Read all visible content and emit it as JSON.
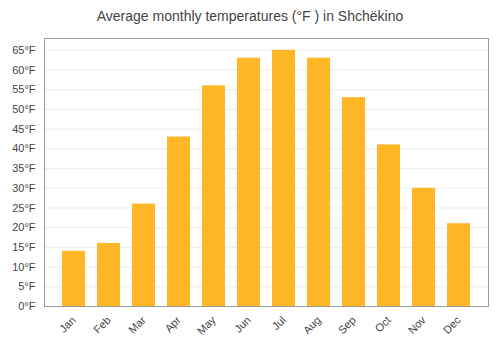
{
  "chart_data": {
    "type": "bar",
    "title": "Average monthly temperatures (°F ) in Shchёkino",
    "categories": [
      "Jan",
      "Feb",
      "Mar",
      "Apr",
      "May",
      "Jun",
      "Jul",
      "Aug",
      "Sep",
      "Oct",
      "Nov",
      "Dec"
    ],
    "values": [
      14,
      16,
      26,
      43,
      56,
      63,
      65,
      63,
      53,
      41,
      30,
      21
    ],
    "color": "#FFB726",
    "ylim": [
      0,
      68
    ],
    "yticks": [
      {
        "value": 0,
        "label": "0°F"
      },
      {
        "value": 5,
        "label": "5°F"
      },
      {
        "value": 10,
        "label": "10°F"
      },
      {
        "value": 15,
        "label": "15°F"
      },
      {
        "value": 20,
        "label": "20°F"
      },
      {
        "value": 25,
        "label": "25°F"
      },
      {
        "value": 30,
        "label": "30°F"
      },
      {
        "value": 35,
        "label": "35°F"
      },
      {
        "value": 40,
        "label": "40°F"
      },
      {
        "value": 45,
        "label": "45°F"
      },
      {
        "value": 50,
        "label": "50°F"
      },
      {
        "value": 55,
        "label": "55°F"
      },
      {
        "value": 60,
        "label": "60°F"
      },
      {
        "value": 65,
        "label": "65°F"
      }
    ],
    "grid": true
  }
}
